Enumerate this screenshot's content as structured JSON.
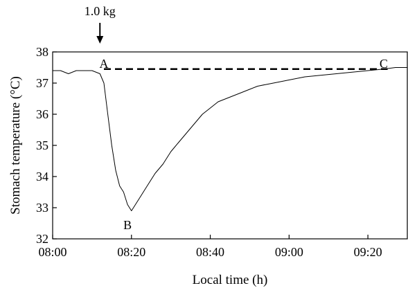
{
  "chart_data": {
    "type": "line",
    "title": "",
    "xlabel": "Local time (h)",
    "ylabel": "Stomach temperature (°C)",
    "xlim": [
      "08:00",
      "09:30"
    ],
    "ylim": [
      32,
      38
    ],
    "x_ticks": [
      "08:00",
      "08:20",
      "08:40",
      "09:00",
      "09:20"
    ],
    "y_ticks": [
      "32",
      "33",
      "34",
      "35",
      "36",
      "37",
      "38"
    ],
    "grid": false,
    "legend": "none",
    "series": [
      {
        "color": "#000000",
        "style": "solid",
        "x": [
          "08:00",
          "08:02",
          "08:04",
          "08:06",
          "08:08",
          "08:10",
          "08:12",
          "08:13",
          "08:14",
          "08:15",
          "08:16",
          "08:17",
          "08:18",
          "08:19",
          "08:20",
          "08:21",
          "08:22",
          "08:24",
          "08:26",
          "08:28",
          "08:30",
          "08:32",
          "08:34",
          "08:36",
          "08:38",
          "08:40",
          "08:42",
          "08:44",
          "08:46",
          "08:48",
          "08:50",
          "08:52",
          "08:54",
          "08:56",
          "08:58",
          "09:00",
          "09:04",
          "09:08",
          "09:12",
          "09:16",
          "09:20",
          "09:24",
          "09:27",
          "09:30"
        ],
        "y": [
          37.4,
          37.4,
          37.3,
          37.4,
          37.4,
          37.4,
          37.3,
          37.0,
          36.0,
          35.0,
          34.2,
          33.7,
          33.5,
          33.1,
          32.9,
          33.1,
          33.3,
          33.7,
          34.1,
          34.4,
          34.8,
          35.1,
          35.4,
          35.7,
          36.0,
          36.2,
          36.4,
          36.5,
          36.6,
          36.7,
          36.8,
          36.9,
          36.95,
          37.0,
          37.05,
          37.1,
          37.2,
          37.25,
          37.3,
          37.35,
          37.4,
          37.45,
          37.5,
          37.5
        ]
      },
      {
        "color": "#000000",
        "style": "dashed",
        "x": [
          "08:13",
          "09:25"
        ],
        "y": [
          37.45,
          37.45
        ]
      }
    ],
    "annotations": [
      {
        "text": "1.0 kg",
        "x": "08:12",
        "y": 38.9,
        "arrow": true
      },
      {
        "text": "A",
        "x": "08:13",
        "y": 37.62
      },
      {
        "text": "B",
        "x": "08:19",
        "y": 32.45
      },
      {
        "text": "C",
        "x": "09:24",
        "y": 37.62
      }
    ]
  }
}
